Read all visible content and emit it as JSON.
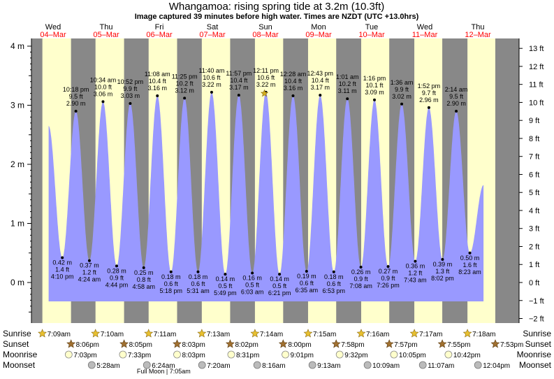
{
  "title": "Whangamoa: rising  spring tide at 3.2m (10.3ft)",
  "subtitle": "Image captured 39 minutes before high water. Times are NZDT (UTC +13.0hrs)",
  "full_moon_note": "Full Moon | 7:05am",
  "colors": {
    "day_bg": "#ffffcc",
    "night_bg": "#888888",
    "tide_fill": "#9999ff",
    "day_header": "#ff0000",
    "sun_star": "#e8c030",
    "set_star": "#a07030",
    "moonrise_fill": "#ffffcc",
    "moonset_fill": "#bbbbbb"
  },
  "days": [
    {
      "dow": "Wed",
      "date": "04–Mar"
    },
    {
      "dow": "Thu",
      "date": "05–Mar"
    },
    {
      "dow": "Fri",
      "date": "06–Mar"
    },
    {
      "dow": "Sat",
      "date": "07–Mar"
    },
    {
      "dow": "Sun",
      "date": "08–Mar"
    },
    {
      "dow": "Mon",
      "date": "09–Mar"
    },
    {
      "dow": "Tue",
      "date": "10–Mar"
    },
    {
      "dow": "Wed",
      "date": "11–Mar"
    },
    {
      "dow": "Thu",
      "date": "12–Mar"
    }
  ],
  "rows": {
    "sunrise": {
      "label": "Sunrise",
      "times": [
        "7:09am",
        "7:10am",
        "7:11am",
        "7:13am",
        "7:14am",
        "7:15am",
        "7:16am",
        "7:17am",
        "7:18am"
      ]
    },
    "sunset": {
      "label": "Sunset",
      "times": [
        "8:06pm",
        "8:05pm",
        "8:03pm",
        "8:02pm",
        "8:00pm",
        "7:58pm",
        "7:57pm",
        "7:55pm",
        "7:53pm"
      ]
    },
    "moonrise": {
      "label": "Moonrise",
      "times": [
        "7:03pm",
        "7:33pm",
        "8:03pm",
        "8:31pm",
        "9:01pm",
        "9:32pm",
        "10:05pm",
        "10:42pm"
      ]
    },
    "moonset": {
      "label": "Moonset",
      "times": [
        "5:28am",
        "6:24am",
        "7:20am",
        "8:16am",
        "9:13am",
        "10:09am",
        "11:07am",
        "12:04pm"
      ]
    }
  },
  "chart_data": {
    "type": "area",
    "title": "Whangamoa: rising  spring tide at 3.2m (10.3ft)",
    "ylabel_left": "m",
    "ylabel_right": "ft",
    "ylim_m": [
      -0.5,
      4.18
    ],
    "left_ticks": [
      "0 m",
      "1 m",
      "2 m",
      "3 m",
      "4 m"
    ],
    "right_ticks": [
      "−2 ft",
      "−1 ft",
      "0 ft",
      "1 ft",
      "2 ft",
      "3 ft",
      "4 ft",
      "5 ft",
      "6 ft",
      "7 ft",
      "8 ft",
      "9 ft",
      "10 ft",
      "11 ft",
      "12 ft",
      "13 ft"
    ],
    "x_units": "time, NZDT",
    "current_level_m": 3.2,
    "series": [
      {
        "kind": "high",
        "time": "10:18 pm",
        "feet": "9.5 ft",
        "m": 2.9,
        "m_text": "2.90 m"
      },
      {
        "kind": "high",
        "time": "10:34 am",
        "feet": "10.0 ft",
        "m": 3.06,
        "m_text": "3.06 m"
      },
      {
        "kind": "high",
        "time": "10:52 pm",
        "feet": "9.9 ft",
        "m": 3.03,
        "m_text": "3.03 m"
      },
      {
        "kind": "high",
        "time": "11:08 am",
        "feet": "10.4 ft",
        "m": 3.16,
        "m_text": "3.16 m"
      },
      {
        "kind": "high",
        "time": "11:25 pm",
        "feet": "10.2 ft",
        "m": 3.12,
        "m_text": "3.12 m"
      },
      {
        "kind": "high",
        "time": "11:40 am",
        "feet": "10.6 ft",
        "m": 3.22,
        "m_text": "3.22 m"
      },
      {
        "kind": "high",
        "time": "11:57 pm",
        "feet": "10.4 ft",
        "m": 3.17,
        "m_text": "3.17 m"
      },
      {
        "kind": "high",
        "time": "12:11 pm",
        "feet": "10.6 ft",
        "m": 3.22,
        "m_text": "3.22 m"
      },
      {
        "kind": "high",
        "time": "12:28 am",
        "feet": "10.4 ft",
        "m": 3.16,
        "m_text": "3.16 m"
      },
      {
        "kind": "high",
        "time": "12:43 pm",
        "feet": "10.4 ft",
        "m": 3.17,
        "m_text": "3.17 m"
      },
      {
        "kind": "high",
        "time": "1:01 am",
        "feet": "10.2 ft",
        "m": 3.11,
        "m_text": "3.11 m"
      },
      {
        "kind": "high",
        "time": "1:16 pm",
        "feet": "10.1 ft",
        "m": 3.09,
        "m_text": "3.09 m"
      },
      {
        "kind": "high",
        "time": "1:36 am",
        "feet": "9.9 ft",
        "m": 3.02,
        "m_text": "3.02 m"
      },
      {
        "kind": "high",
        "time": "1:52 pm",
        "feet": "9.7 ft",
        "m": 2.96,
        "m_text": "2.96 m"
      },
      {
        "kind": "high",
        "time": "2:14 am",
        "feet": "9.5 ft",
        "m": 2.9,
        "m_text": "2.90 m"
      }
    ],
    "lows": [
      {
        "kind": "low",
        "time": "4:10 pm",
        "feet": "1.4 ft",
        "m": 0.42,
        "m_text": "0.42 m"
      },
      {
        "kind": "low",
        "time": "4:24 am",
        "feet": "1.2 ft",
        "m": 0.37,
        "m_text": "0.37 m"
      },
      {
        "kind": "low",
        "time": "4:44 pm",
        "feet": "0.9 ft",
        "m": 0.28,
        "m_text": "0.28 m"
      },
      {
        "kind": "low",
        "time": "4:58 am",
        "feet": "0.8 ft",
        "m": 0.25,
        "m_text": "0.25 m"
      },
      {
        "kind": "low",
        "time": "5:18 pm",
        "feet": "0.6 ft",
        "m": 0.18,
        "m_text": "0.18 m"
      },
      {
        "kind": "low",
        "time": "5:31 am",
        "feet": "0.6 ft",
        "m": 0.18,
        "m_text": "0.18 m"
      },
      {
        "kind": "low",
        "time": "5:49 pm",
        "feet": "0.5 ft",
        "m": 0.14,
        "m_text": "0.14 m"
      },
      {
        "kind": "low",
        "time": "6:03 am",
        "feet": "0.5 ft",
        "m": 0.16,
        "m_text": "0.16 m"
      },
      {
        "kind": "low",
        "time": "6:21 pm",
        "feet": "0.5 ft",
        "m": 0.14,
        "m_text": "0.14 m"
      },
      {
        "kind": "low",
        "time": "6:35 am",
        "feet": "0.6 ft",
        "m": 0.19,
        "m_text": "0.19 m"
      },
      {
        "kind": "low",
        "time": "6:53 pm",
        "feet": "0.6 ft",
        "m": 0.18,
        "m_text": "0.18 m"
      },
      {
        "kind": "low",
        "time": "7:08 am",
        "feet": "0.9 ft",
        "m": 0.26,
        "m_text": "0.26 m"
      },
      {
        "kind": "low",
        "time": "7:26 pm",
        "feet": "0.9 ft",
        "m": 0.27,
        "m_text": "0.27 m"
      },
      {
        "kind": "low",
        "time": "7:43 am",
        "feet": "1.2 ft",
        "m": 0.36,
        "m_text": "0.36 m"
      },
      {
        "kind": "low",
        "time": "8:02 pm",
        "feet": "1.3 ft",
        "m": 0.39,
        "m_text": "0.39 m"
      },
      {
        "kind": "low",
        "time": "8:23 am",
        "feet": "1.6 ft",
        "m": 0.5,
        "m_text": "0.50 m"
      }
    ]
  }
}
